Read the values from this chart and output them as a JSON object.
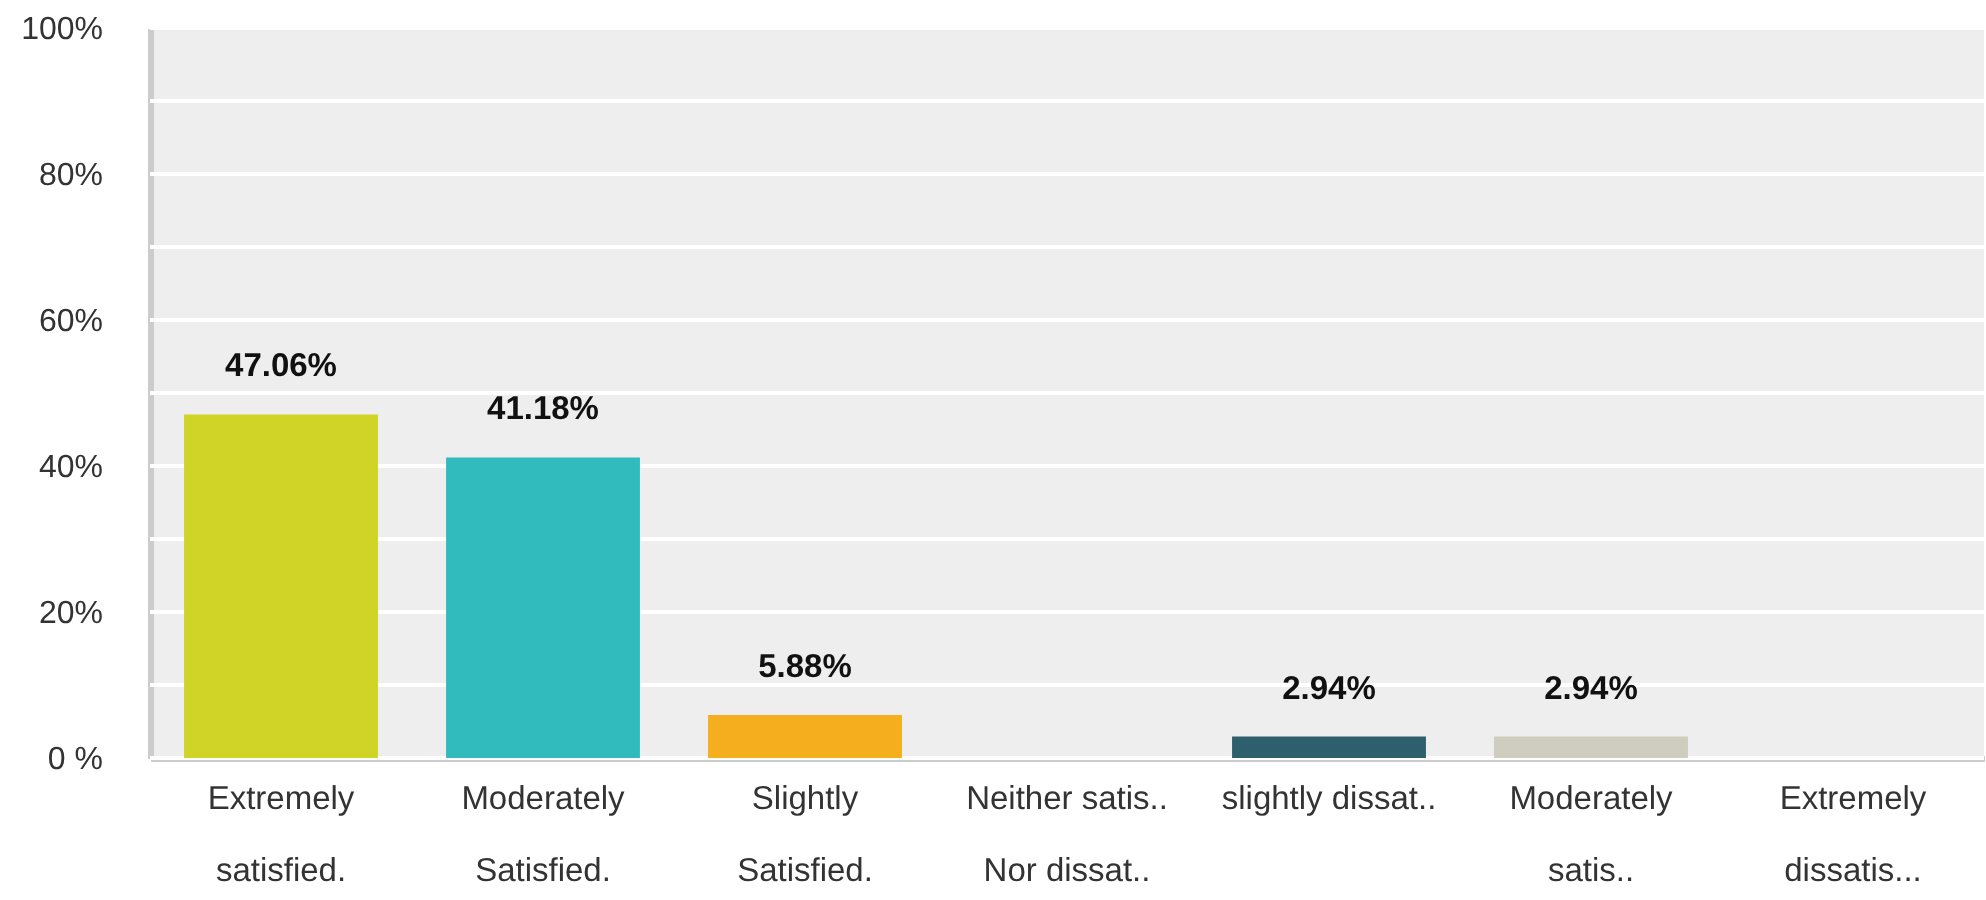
{
  "chart_data": {
    "type": "bar",
    "categories": [
      "Extremely\nsatisfied.",
      "Moderately\nSatisfied.",
      "Slightly\nSatisfied.",
      "Neither satis..\nNor dissat..",
      "slightly dissat..",
      "Moderately\nsatis..",
      "Extremely\ndissatis..."
    ],
    "values": [
      47.06,
      41.18,
      5.88,
      0,
      2.94,
      2.94,
      0
    ],
    "colors": [
      "#cfd426",
      "#32bbbd",
      "#f5ae1e",
      null,
      "#2e5f6d",
      "#cfcdbe",
      null
    ],
    "value_labels": [
      "47.06%",
      "41.18%",
      "5.88%",
      null,
      "2.94%",
      "2.94%",
      null
    ],
    "ylim": [
      0,
      100
    ],
    "yticks": [
      {
        "value": 0,
        "label": "0 %"
      },
      {
        "value": 10,
        "label": null
      },
      {
        "value": 20,
        "label": "20%"
      },
      {
        "value": 30,
        "label": null
      },
      {
        "value": 40,
        "label": "40%"
      },
      {
        "value": 50,
        "label": null
      },
      {
        "value": 60,
        "label": "60%"
      },
      {
        "value": 70,
        "label": null
      },
      {
        "value": 80,
        "label": "80%"
      },
      {
        "value": 90,
        "label": null
      },
      {
        "value": 100,
        "label": "100%"
      }
    ],
    "grid": "y"
  }
}
